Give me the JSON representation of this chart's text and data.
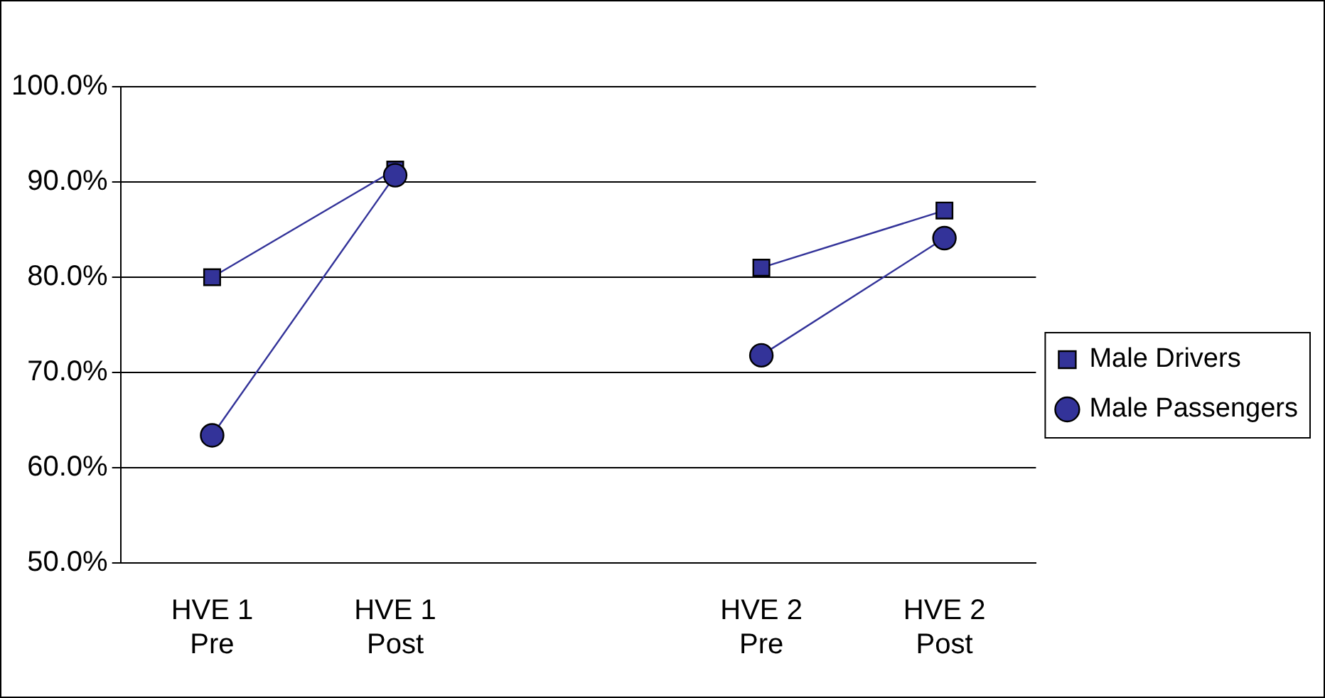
{
  "chart_data": {
    "type": "line",
    "categories": [
      "HVE 1 Pre",
      "HVE 1 Post",
      null,
      "HVE 2 Pre",
      "HVE 2 Post"
    ],
    "series": [
      {
        "name": "Male Drivers",
        "color": "#333399",
        "marker": "square",
        "values": [
          80.0,
          91.3,
          null,
          81.0,
          87.0
        ]
      },
      {
        "name": "Male Passengers",
        "color": "#333399",
        "marker": "circle",
        "values": [
          63.4,
          90.7,
          null,
          71.8,
          84.1
        ]
      }
    ],
    "ylim": [
      50,
      100
    ],
    "yticks": [
      {
        "value": 50,
        "label": "50.0%"
      },
      {
        "value": 60,
        "label": "60.0%"
      },
      {
        "value": 70,
        "label": "70.0%"
      },
      {
        "value": 80,
        "label": "80.0%"
      },
      {
        "value": 90,
        "label": "90.0%"
      },
      {
        "value": 100,
        "label": "100.0%"
      }
    ],
    "grid": "y",
    "legend": "right",
    "line_style": "solid"
  }
}
